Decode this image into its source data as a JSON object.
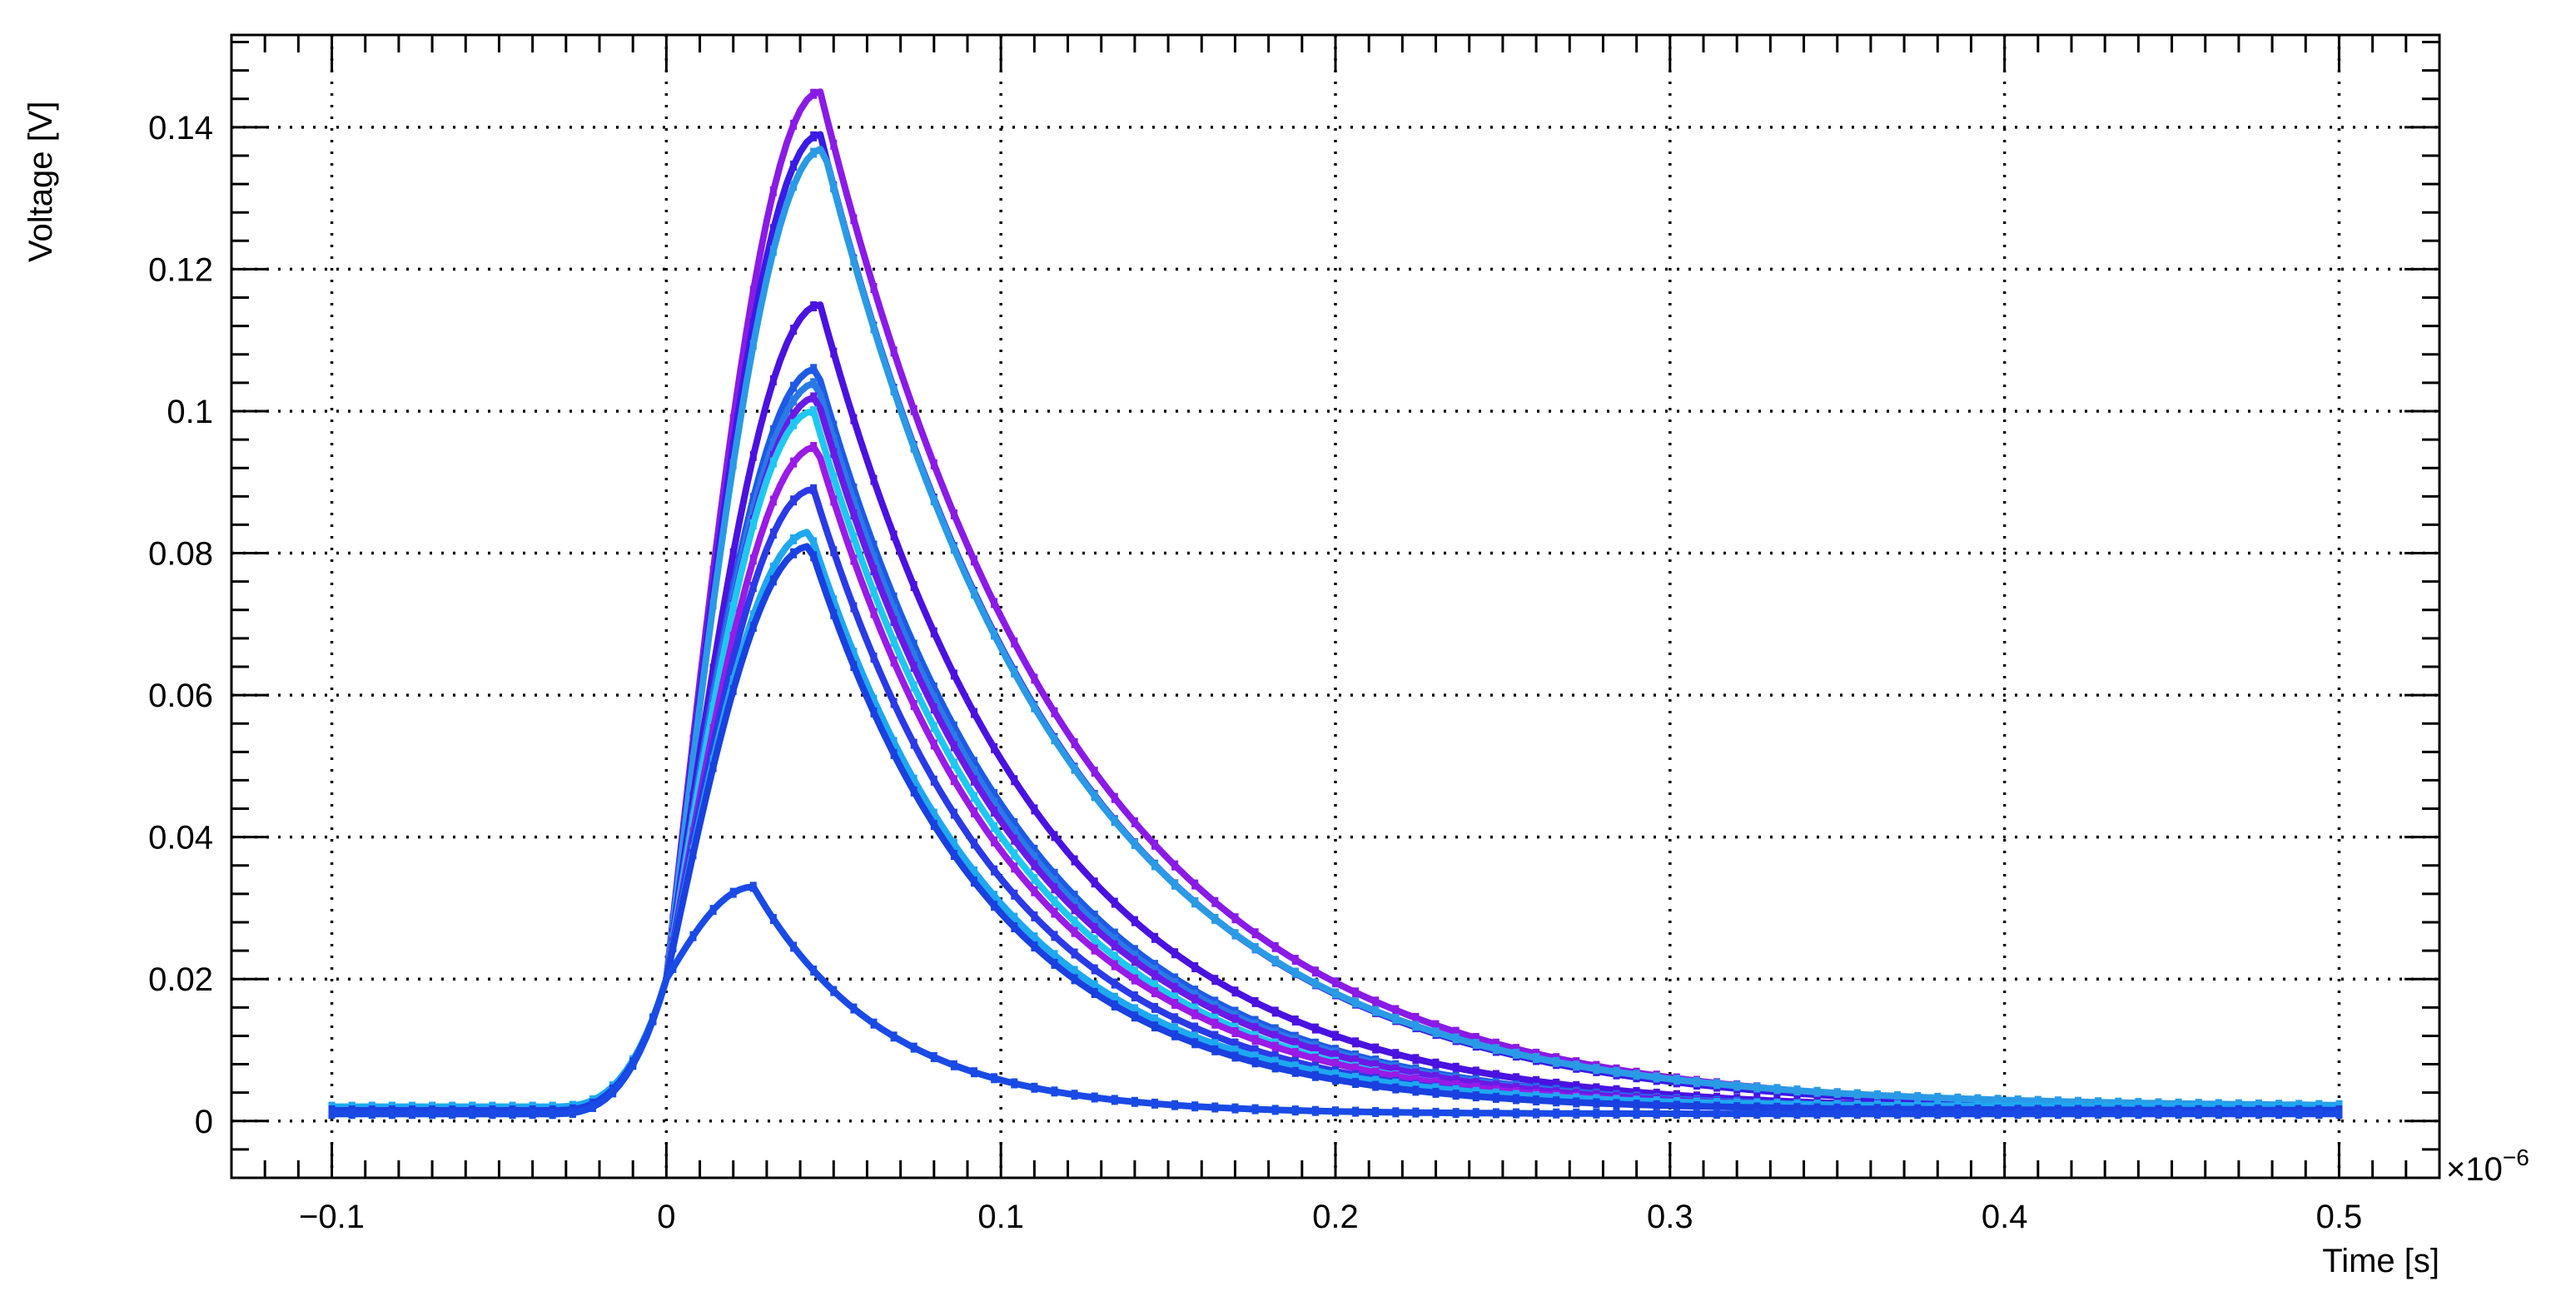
{
  "chart_data": {
    "type": "line",
    "title": "",
    "xlabel": "Time [s]",
    "ylabel": "Voltage [V]",
    "x_exponent": "×10",
    "x_exponent_power": "−6",
    "xlim": [
      -0.13,
      0.53
    ],
    "ylim": [
      -0.008,
      0.153
    ],
    "x_ticks": [
      -0.1,
      0,
      0.1,
      0.2,
      0.3,
      0.4,
      0.5
    ],
    "x_tick_labels": [
      "−0.1",
      "0",
      "0.1",
      "0.2",
      "0.3",
      "0.4",
      "0.5"
    ],
    "y_ticks": [
      0,
      0.02,
      0.04,
      0.06,
      0.08,
      0.1,
      0.12,
      0.14
    ],
    "y_tick_labels": [
      "0",
      "0.02",
      "0.04",
      "0.06",
      "0.08",
      "0.1",
      "0.12",
      "0.14"
    ],
    "grid": true,
    "legend": "none",
    "x_range": [
      -0.1,
      0.5
    ],
    "onset": 0.0,
    "onset_value": 0.02,
    "series": [
      {
        "color": "#8a1ae6",
        "peak": 0.145,
        "peak_time": 0.046,
        "baseline": 0.0015
      },
      {
        "color": "#3a1ae6",
        "peak": 0.139,
        "peak_time": 0.046,
        "baseline": 0.0015
      },
      {
        "color": "#2a9ae6",
        "peak": 0.137,
        "peak_time": 0.047,
        "baseline": 0.002
      },
      {
        "color": "#4a12e0",
        "peak": 0.115,
        "peak_time": 0.046,
        "baseline": 0.0015
      },
      {
        "color": "#1e5ae6",
        "peak": 0.106,
        "peak_time": 0.045,
        "baseline": 0.0015
      },
      {
        "color": "#2a7ae6",
        "peak": 0.104,
        "peak_time": 0.045,
        "baseline": 0.0015
      },
      {
        "color": "#6a1ae6",
        "peak": 0.102,
        "peak_time": 0.045,
        "baseline": 0.0015
      },
      {
        "color": "#1ec8f0",
        "peak": 0.1,
        "peak_time": 0.044,
        "baseline": 0.001
      },
      {
        "color": "#9a1ae6",
        "peak": 0.095,
        "peak_time": 0.045,
        "baseline": 0.0015
      },
      {
        "color": "#2a3ae6",
        "peak": 0.089,
        "peak_time": 0.044,
        "baseline": 0.0015
      },
      {
        "color": "#1ea8f0",
        "peak": 0.083,
        "peak_time": 0.043,
        "baseline": 0.002
      },
      {
        "color": "#1a40e0",
        "peak": 0.081,
        "peak_time": 0.043,
        "baseline": 0.0015
      },
      {
        "color": "#1a4ae6",
        "peak": 0.033,
        "peak_time": 0.026,
        "baseline": 0.001
      }
    ]
  }
}
